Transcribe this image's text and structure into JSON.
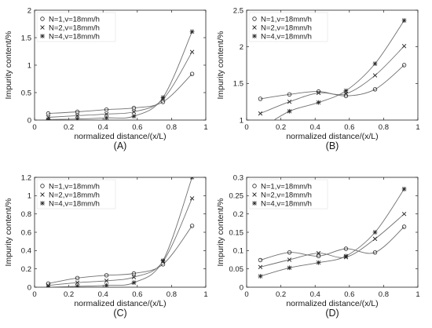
{
  "chart_data": [
    {
      "type": "line",
      "panel_label": "(A)",
      "xlabel": "normalized distance/(x/L)",
      "ylabel": "Impurity content/%",
      "xlim": [
        0,
        1
      ],
      "ylim": [
        0,
        2
      ],
      "xticks": [
        0,
        0.2,
        0.4,
        0.6,
        0.8,
        1
      ],
      "xtick_labels": [
        "0",
        "0.2",
        "0.4",
        "0.6",
        "0.8",
        "1"
      ],
      "yticks": [
        0,
        0.5,
        1,
        1.5,
        2
      ],
      "ytick_labels": [
        "0",
        "0.5",
        "1",
        "1.5",
        "2"
      ],
      "grid": false,
      "legend_position": "top-left",
      "x": [
        0.08,
        0.25,
        0.42,
        0.58,
        0.75,
        0.92
      ],
      "series": [
        {
          "name": "N=1,v=18mm/h",
          "marker": "circle",
          "values": [
            0.12,
            0.15,
            0.19,
            0.22,
            0.33,
            0.84
          ]
        },
        {
          "name": "N=2,v=18mm/h",
          "marker": "x",
          "values": [
            0.05,
            0.08,
            0.11,
            0.15,
            0.38,
            1.24
          ]
        },
        {
          "name": "N=4,v=18mm/h",
          "marker": "star",
          "values": [
            0.01,
            0.02,
            0.04,
            0.07,
            0.41,
            1.61
          ]
        }
      ]
    },
    {
      "type": "line",
      "panel_label": "(B)",
      "xlabel": "normalized distance/(x/L)",
      "ylabel": "Impurity content/%",
      "xlim": [
        0,
        1
      ],
      "ylim": [
        1,
        2.5
      ],
      "xticks": [
        0,
        0.2,
        0.4,
        0.6,
        0.8,
        1
      ],
      "xtick_labels": [
        "0",
        "0.2",
        "0.4",
        "0.6",
        "0.8",
        "1"
      ],
      "yticks": [
        1,
        1.5,
        2,
        2.5
      ],
      "ytick_labels": [
        "1",
        "1.5",
        "2",
        "2.5"
      ],
      "grid": false,
      "legend_position": "top-left",
      "x": [
        0.08,
        0.25,
        0.42,
        0.58,
        0.75,
        0.92
      ],
      "series": [
        {
          "name": "N=1,v=18mm/h",
          "marker": "circle",
          "values": [
            1.29,
            1.35,
            1.39,
            1.33,
            1.42,
            1.75
          ]
        },
        {
          "name": "N=2,v=18mm/h",
          "marker": "x",
          "values": [
            1.09,
            1.25,
            1.37,
            1.36,
            1.61,
            2.01
          ]
        },
        {
          "name": "N=4,v=18mm/h",
          "marker": "star",
          "values": [
            0.88,
            1.12,
            1.24,
            1.4,
            1.77,
            2.36
          ]
        }
      ]
    },
    {
      "type": "line",
      "panel_label": "(C)",
      "xlabel": "normalized distance/(x/L)",
      "ylabel": "Impurity content/%",
      "xlim": [
        0,
        1
      ],
      "ylim": [
        0,
        1.2
      ],
      "xticks": [
        0,
        0.2,
        0.4,
        0.6,
        0.8,
        1
      ],
      "xtick_labels": [
        "0",
        "0.2",
        "0.4",
        "0.6",
        "0.8",
        "1"
      ],
      "yticks": [
        0,
        0.2,
        0.4,
        0.6,
        0.8,
        1,
        1.2
      ],
      "ytick_labels": [
        "0",
        "0.2",
        "0.4",
        "0.6",
        "0.8",
        "1",
        "1.2"
      ],
      "grid": false,
      "legend_position": "top-left",
      "x": [
        0.08,
        0.25,
        0.42,
        0.58,
        0.75,
        0.92
      ],
      "series": [
        {
          "name": "N=1,v=18mm/h",
          "marker": "circle",
          "values": [
            0.04,
            0.1,
            0.13,
            0.15,
            0.25,
            0.67
          ]
        },
        {
          "name": "N=2,v=18mm/h",
          "marker": "x",
          "values": [
            0.02,
            0.05,
            0.07,
            0.11,
            0.28,
            0.97
          ]
        },
        {
          "name": "N=4,v=18mm/h",
          "marker": "star",
          "values": [
            0.0,
            0.01,
            0.02,
            0.05,
            0.29,
            1.2
          ]
        }
      ]
    },
    {
      "type": "line",
      "panel_label": "(D)",
      "xlabel": "normalized distance/(x/L)",
      "ylabel": "Impurity content/%",
      "xlim": [
        0,
        1
      ],
      "ylim": [
        0,
        0.3
      ],
      "xticks": [
        0,
        0.2,
        0.4,
        0.6,
        0.8,
        1
      ],
      "xtick_labels": [
        "0",
        "0.2",
        "0.4",
        "0.6",
        "0.8",
        "1"
      ],
      "yticks": [
        0,
        0.05,
        0.1,
        0.15,
        0.2,
        0.25,
        0.3
      ],
      "ytick_labels": [
        "0",
        "0.05",
        "0.1",
        "0.15",
        "0.2",
        "0.25",
        "0.3"
      ],
      "grid": false,
      "legend_position": "top-left",
      "x": [
        0.08,
        0.25,
        0.42,
        0.58,
        0.75,
        0.92
      ],
      "series": [
        {
          "name": "N=1,v=18mm/h",
          "marker": "circle",
          "values": [
            0.074,
            0.095,
            0.085,
            0.105,
            0.095,
            0.165
          ]
        },
        {
          "name": "N=2,v=18mm/h",
          "marker": "x",
          "values": [
            0.055,
            0.075,
            0.093,
            0.082,
            0.132,
            0.2
          ]
        },
        {
          "name": "N=4,v=18mm/h",
          "marker": "star",
          "values": [
            0.03,
            0.053,
            0.067,
            0.085,
            0.15,
            0.268
          ]
        }
      ]
    }
  ]
}
